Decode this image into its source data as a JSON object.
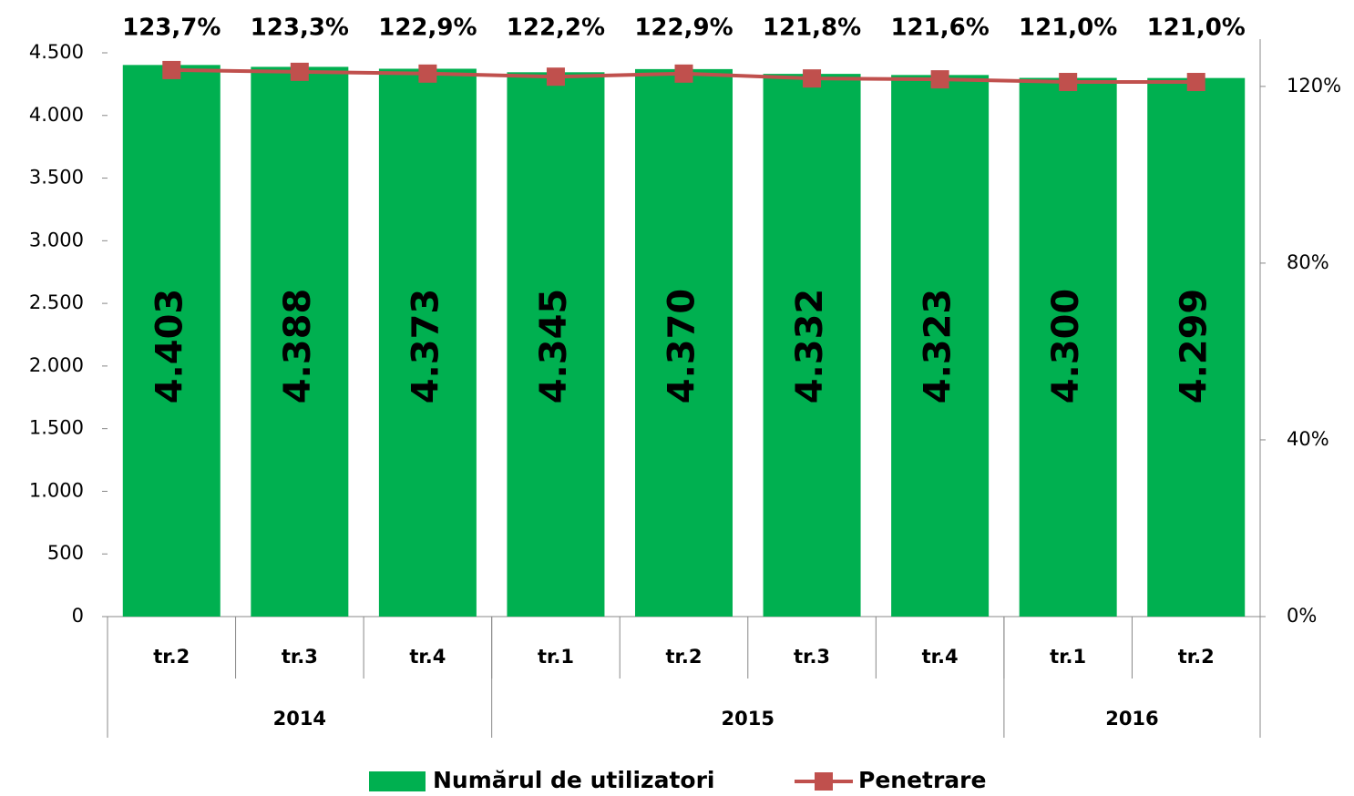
{
  "chart_data": {
    "type": "bar",
    "groups": [
      {
        "label": "2014",
        "categories": [
          "tr.2",
          "tr.3",
          "tr.4"
        ]
      },
      {
        "label": "2015",
        "categories": [
          "tr.1",
          "tr.2",
          "tr.3",
          "tr.4"
        ]
      },
      {
        "label": "2016",
        "categories": [
          "tr.1",
          "tr.2"
        ]
      }
    ],
    "series": [
      {
        "name": "Numărul de utilizatori",
        "type": "bar",
        "color": "#00b050",
        "values": [
          4403,
          4388,
          4373,
          4345,
          4370,
          4332,
          4323,
          4300,
          4299
        ],
        "value_labels": [
          "4.403",
          "4.388",
          "4.373",
          "4.345",
          "4.370",
          "4.332",
          "4.323",
          "4.300",
          "4.299"
        ]
      },
      {
        "name": "Penetrare",
        "type": "line",
        "axis": "y2",
        "color": "#c0504d",
        "values": [
          123.7,
          123.3,
          122.9,
          122.2,
          122.9,
          121.8,
          121.6,
          121.0,
          121.0
        ],
        "value_labels": [
          "123,7%",
          "123,3%",
          "122,9%",
          "122,2%",
          "122,9%",
          "121,8%",
          "121,6%",
          "121,0%",
          "121,0%"
        ]
      }
    ],
    "ylim": [
      0,
      4500
    ],
    "yticks": [
      0,
      500,
      {
        "value": 1000,
        "label": "1.000"
      },
      {
        "value": 1500,
        "label": "1.500"
      },
      {
        "value": 2000,
        "label": "2.000"
      },
      {
        "value": 2500,
        "label": "2.500"
      },
      {
        "value": 3000,
        "label": "3.000"
      },
      {
        "value": 3500,
        "label": "3.500"
      },
      {
        "value": 4000,
        "label": "4.000"
      },
      {
        "value": 4500,
        "label": "4.500"
      }
    ],
    "y2lim": [
      0,
      127.6
    ],
    "y2ticks": [
      {
        "value": 0,
        "label": "0%"
      },
      {
        "value": 40,
        "label": "40%"
      },
      {
        "value": 80,
        "label": "80%"
      },
      {
        "value": 120,
        "label": "120%"
      }
    ],
    "grid": false,
    "legend": "bottom"
  }
}
